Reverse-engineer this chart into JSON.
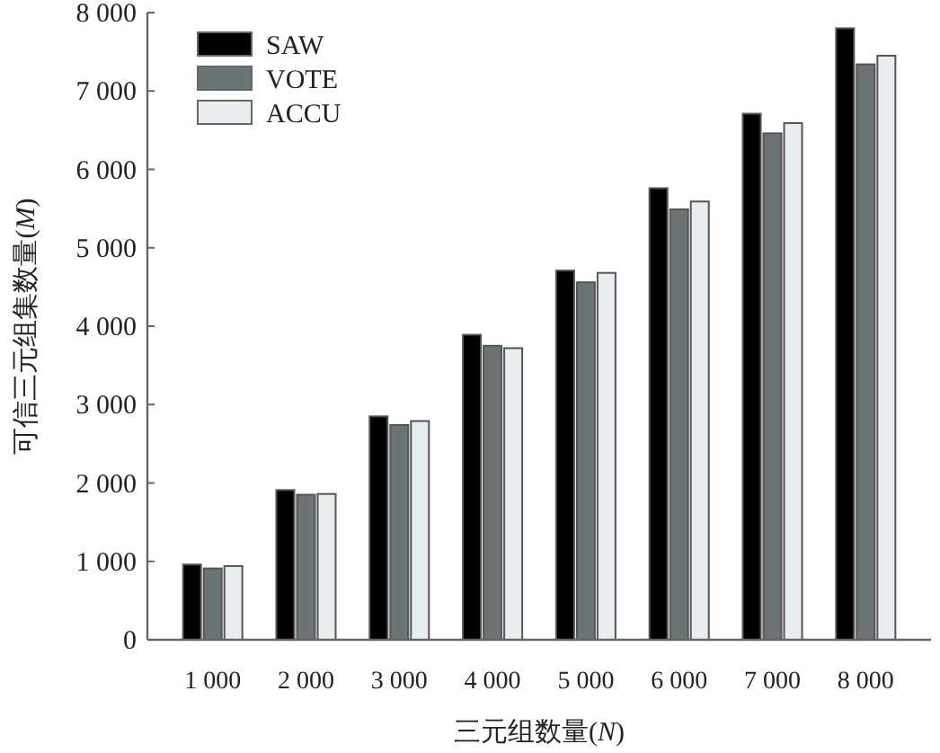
{
  "chart_data": {
    "type": "bar",
    "xlabel": "三元组数量(*N*)",
    "ylabel": "可信三元组集数量(*M*)",
    "categories": [
      "1 000",
      "2 000",
      "3 000",
      "4 000",
      "5 000",
      "6 000",
      "7 000",
      "8 000"
    ],
    "series": [
      {
        "name": "SAW",
        "color": "#000000",
        "values": [
          960,
          1910,
          2850,
          3890,
          4710,
          5760,
          6710,
          7800
        ]
      },
      {
        "name": "VOTE",
        "color": "#6b7475",
        "values": [
          910,
          1850,
          2740,
          3750,
          4560,
          5490,
          6460,
          7340
        ]
      },
      {
        "name": "ACCU",
        "color": "#e8eef0",
        "values": [
          940,
          1860,
          2790,
          3720,
          4680,
          5590,
          6590,
          7450
        ]
      }
    ],
    "ylim": [
      0,
      8000
    ],
    "yticks": [
      0,
      {
        "value": 1000,
        "label": "1 000"
      },
      {
        "value": 2000,
        "label": "2 000"
      },
      {
        "value": 3000,
        "label": "3 000"
      },
      {
        "value": 4000,
        "label": "4 000"
      },
      {
        "value": 5000,
        "label": "5 000"
      },
      {
        "value": 6000,
        "label": "6 000"
      },
      {
        "value": 7000,
        "label": "7 000"
      },
      {
        "value": 8000,
        "label": "8 000"
      }
    ],
    "legend": "top left",
    "grid": false
  }
}
